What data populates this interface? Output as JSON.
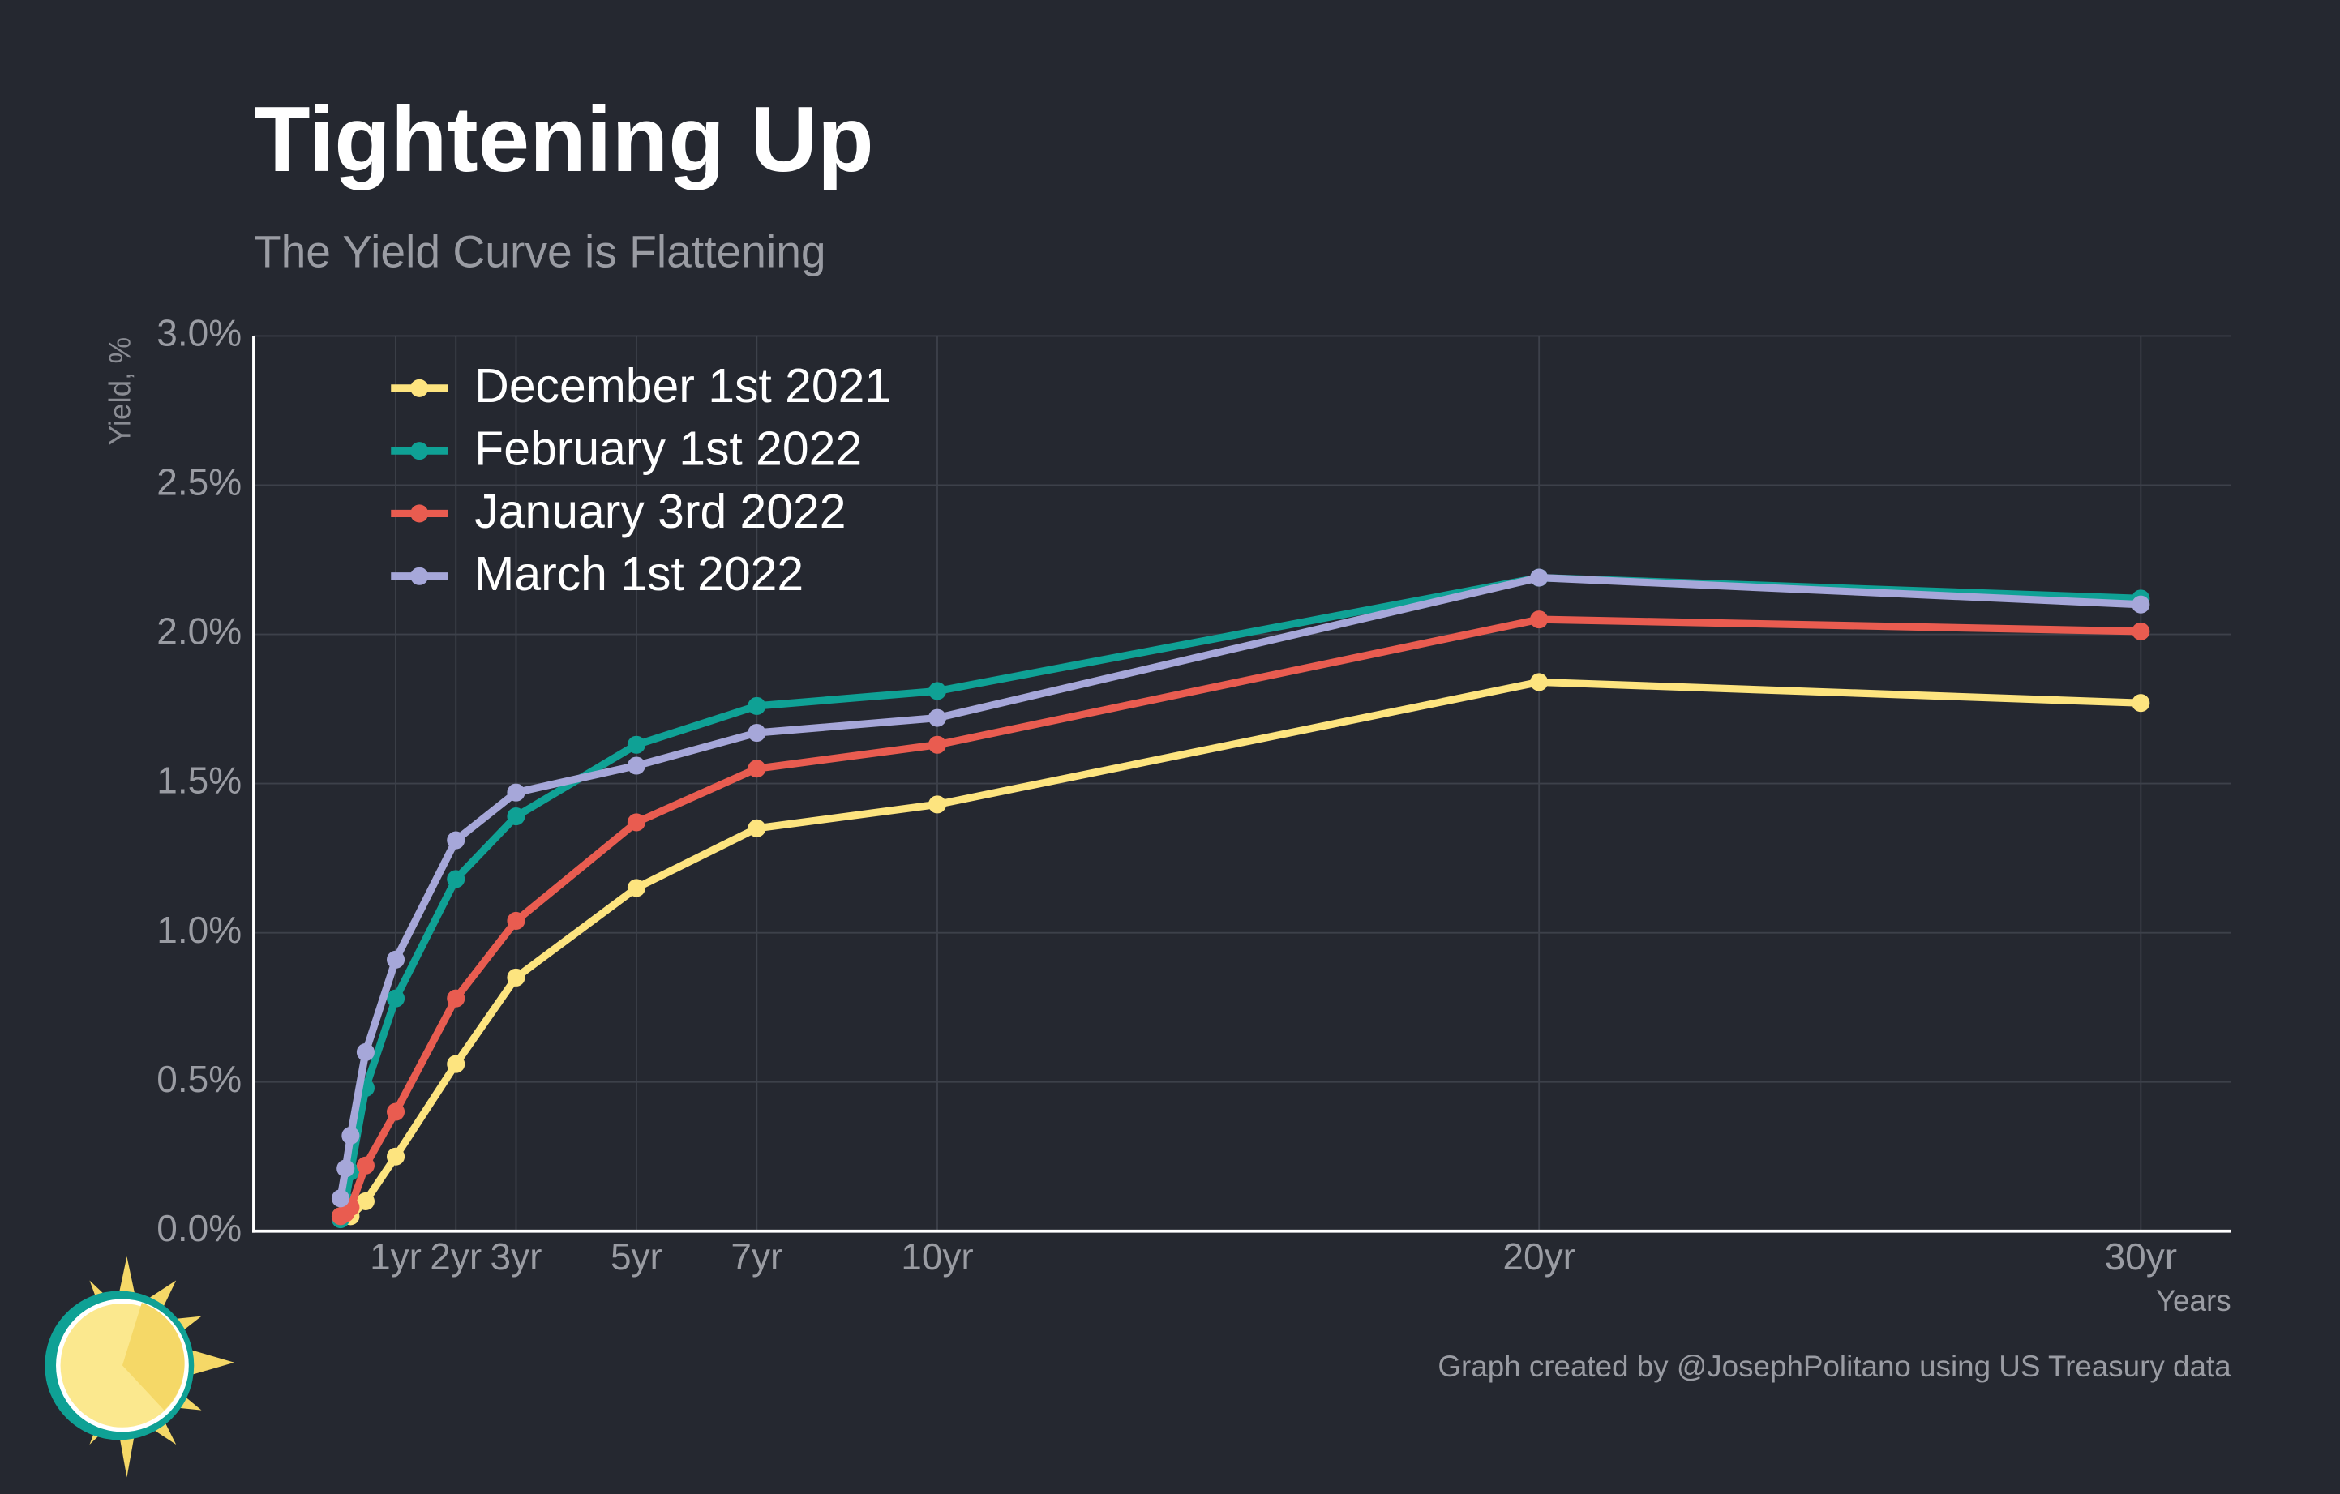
{
  "chart_data": {
    "type": "line",
    "title": "Tightening Up",
    "subtitle": "The Yield Curve is Flattening",
    "y_label": "Yield, %",
    "x_label": "Years",
    "credit": "Graph created by @JosephPolitano using US Treasury data",
    "x": [
      0.083,
      0.167,
      0.25,
      0.5,
      1,
      2,
      3,
      5,
      7,
      10,
      20,
      30
    ],
    "xlim": [
      -1.36,
      31.5
    ],
    "xticks": [
      {
        "value": 1,
        "label": "1yr"
      },
      {
        "value": 2,
        "label": "2yr"
      },
      {
        "value": 3,
        "label": "3yr"
      },
      {
        "value": 5,
        "label": "5yr"
      },
      {
        "value": 7,
        "label": "7yr"
      },
      {
        "value": 10,
        "label": "10yr"
      },
      {
        "value": 20,
        "label": "20yr"
      },
      {
        "value": 30,
        "label": "30yr"
      }
    ],
    "ylim": [
      0,
      3
    ],
    "yticks": [
      {
        "value": 0,
        "label": "0.0%"
      },
      {
        "value": 0.5,
        "label": "0.5%"
      },
      {
        "value": 1,
        "label": "1.0%"
      },
      {
        "value": 1.5,
        "label": "1.5%"
      },
      {
        "value": 2,
        "label": "2.0%"
      },
      {
        "value": 2.5,
        "label": "2.5%"
      },
      {
        "value": 3,
        "label": "3.0%"
      }
    ],
    "grid": true,
    "legend": "upper left",
    "series": [
      {
        "name": "December 1st 2021",
        "color": "#fde47f",
        "values": [
          0.05,
          0.05,
          0.05,
          0.1,
          0.25,
          0.56,
          0.85,
          1.15,
          1.35,
          1.43,
          1.84,
          1.77
        ]
      },
      {
        "name": "February 1st 2022",
        "color": "#0fa195",
        "values": [
          0.04,
          0.1,
          0.2,
          0.48,
          0.78,
          1.18,
          1.39,
          1.63,
          1.76,
          1.81,
          2.19,
          2.12
        ]
      },
      {
        "name": "January 3rd 2022",
        "color": "#e95c50",
        "values": [
          0.05,
          0.06,
          0.08,
          0.22,
          0.4,
          0.78,
          1.04,
          1.37,
          1.55,
          1.63,
          2.05,
          2.01
        ]
      },
      {
        "name": "March 1st 2022",
        "color": "#a6a7d9",
        "values": [
          0.11,
          0.21,
          0.32,
          0.6,
          0.91,
          1.31,
          1.47,
          1.56,
          1.67,
          1.72,
          2.19,
          2.1
        ]
      }
    ]
  }
}
